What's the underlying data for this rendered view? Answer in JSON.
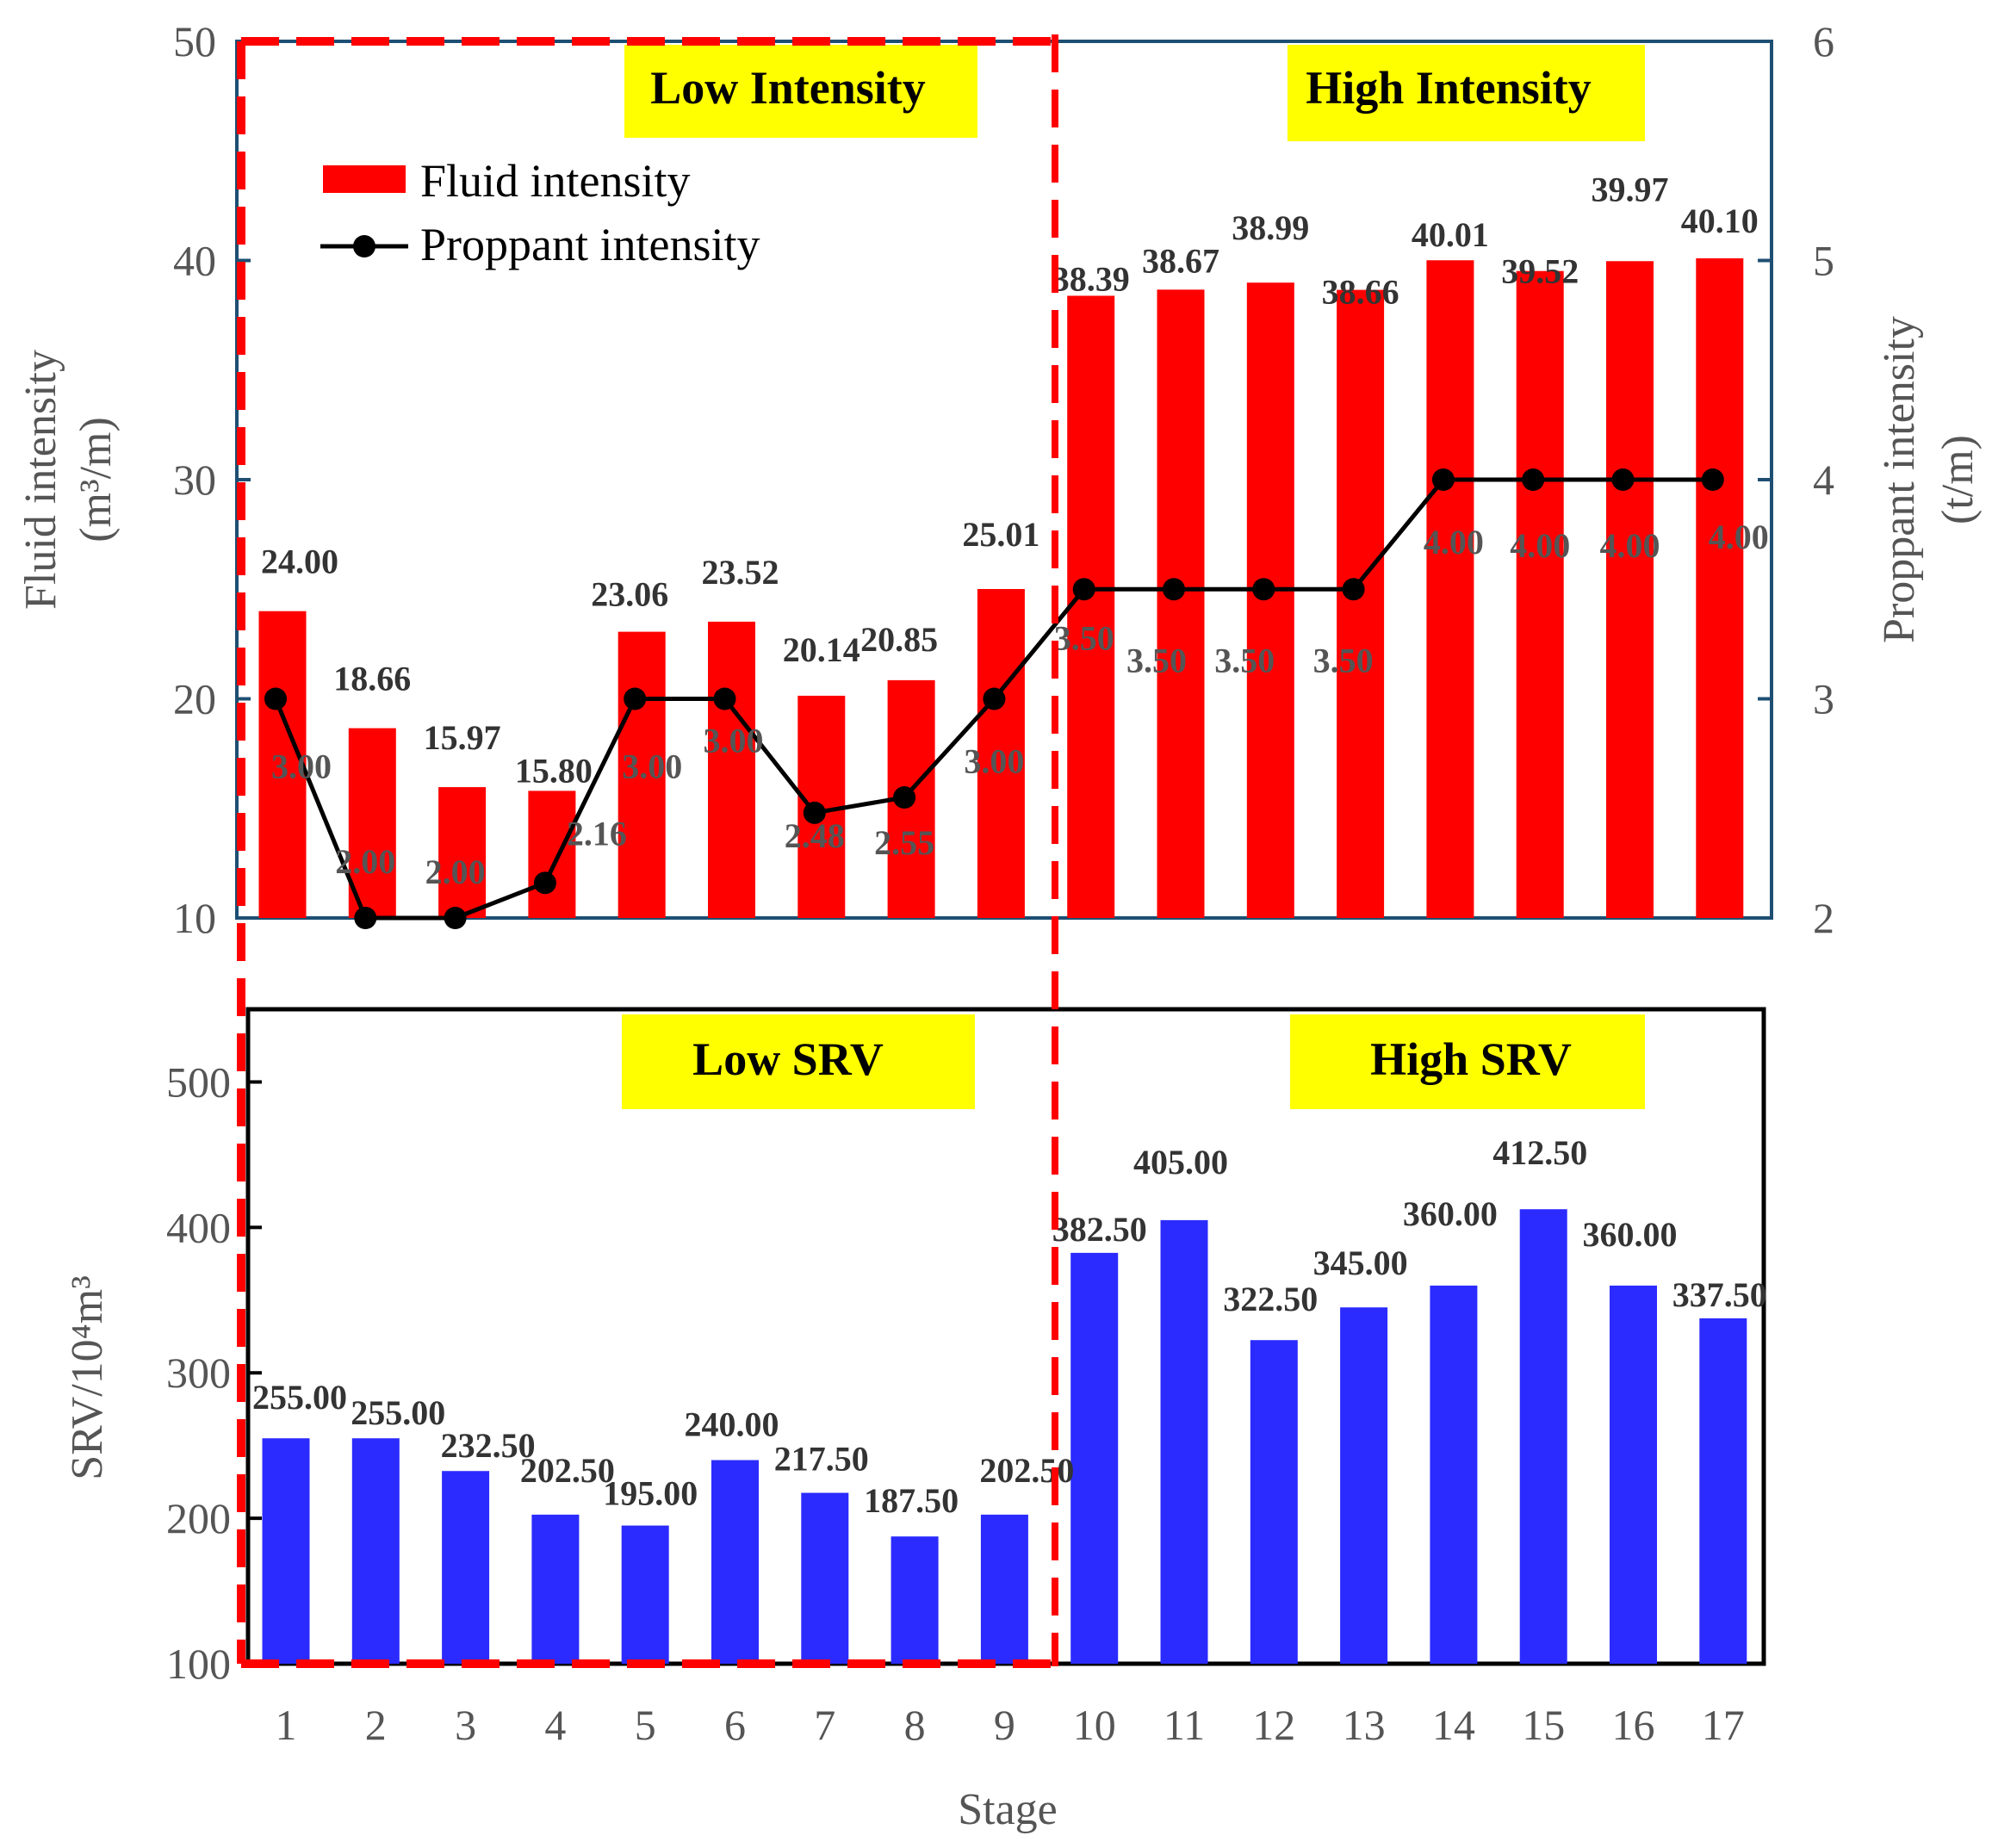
{
  "chart_data": [
    {
      "type": "bar+line",
      "title": "",
      "x": [
        "1",
        "2",
        "3",
        "4",
        "5",
        "6",
        "7",
        "8",
        "9",
        "10",
        "11",
        "12",
        "13",
        "14",
        "15",
        "16",
        "17"
      ],
      "series": [
        {
          "name": "Fluid intensity",
          "kind": "bar",
          "axis": "left",
          "color": "#ff0000",
          "values": [
            24.0,
            18.66,
            15.97,
            15.8,
            23.06,
            23.52,
            20.14,
            20.85,
            25.01,
            38.39,
            38.67,
            38.99,
            38.66,
            40.01,
            39.52,
            39.97,
            40.1
          ],
          "labels": [
            "24.00",
            "18.66",
            "15.97",
            "15.80",
            "23.06",
            "23.52",
            "20.14",
            "20.85",
            "25.01",
            "38.39",
            "38.67",
            "38.99",
            "38.66",
            "40.01",
            "39.52",
            "39.97",
            "40.10"
          ]
        },
        {
          "name": "Proppant intensity",
          "kind": "line",
          "axis": "right",
          "color": "#000000",
          "values": [
            3.0,
            2.0,
            2.0,
            2.16,
            3.0,
            3.0,
            2.48,
            2.55,
            3.0,
            3.5,
            3.5,
            3.5,
            3.5,
            4.0,
            4.0,
            4.0,
            4.0
          ],
          "labels": [
            "3.00",
            "2.00",
            "2.00",
            "2.16",
            "3.00",
            "3.00",
            "2.48",
            "2.55",
            "3.00",
            "3.50",
            "3.50",
            "3.50",
            "3.50",
            "4.00",
            "4.00",
            "4.00",
            "4.00"
          ]
        }
      ],
      "ylabel_left": "Fluid intensity",
      "ylabel_left_unit": "(m³/m)",
      "ylim_left": [
        10,
        50
      ],
      "yticks_left": [
        "10",
        "20",
        "30",
        "40",
        "50"
      ],
      "ylabel_right": "Proppant intensity",
      "ylabel_right_unit": "(t/m)",
      "ylim_right": [
        2,
        6
      ],
      "yticks_right": [
        "2",
        "3",
        "4",
        "5",
        "6"
      ],
      "regions": [
        "Low Intensity",
        "High Intensity"
      ],
      "legend": [
        "Fluid intensity",
        "Proppant intensity"
      ],
      "legend_position": "top-left"
    },
    {
      "type": "bar",
      "title": "",
      "x": [
        "1",
        "2",
        "3",
        "4",
        "5",
        "6",
        "7",
        "8",
        "9",
        "10",
        "11",
        "12",
        "13",
        "14",
        "15",
        "16",
        "17"
      ],
      "series": [
        {
          "name": "SRV",
          "color": "#2b2bff",
          "values": [
            255.0,
            255.0,
            232.5,
            202.5,
            195.0,
            240.0,
            217.5,
            187.5,
            202.5,
            382.5,
            405.0,
            322.5,
            345.0,
            360.0,
            412.5,
            360.0,
            337.5
          ],
          "labels": [
            "255.00",
            "255.00",
            "232.50",
            "202.50",
            "195.00",
            "240.00",
            "217.50",
            "187.50",
            "202.50",
            "382.50",
            "405.00",
            "322.50",
            "345.00",
            "360.00",
            "412.50",
            "360.00",
            "337.50"
          ]
        }
      ],
      "xlabel": "Stage",
      "ylabel": "SRV/10⁴m³",
      "ylim": [
        100,
        550
      ],
      "yticks": [
        "100",
        "200",
        "300",
        "400",
        "500"
      ],
      "regions": [
        "Low SRV",
        "High SRV"
      ]
    }
  ],
  "colors": {
    "fluid_bar": "#ff0000",
    "srv_bar": "#2b2bff",
    "proppant_line": "#000000",
    "highlight_box": "#ffff00",
    "dashed_divider": "#ff0000"
  }
}
